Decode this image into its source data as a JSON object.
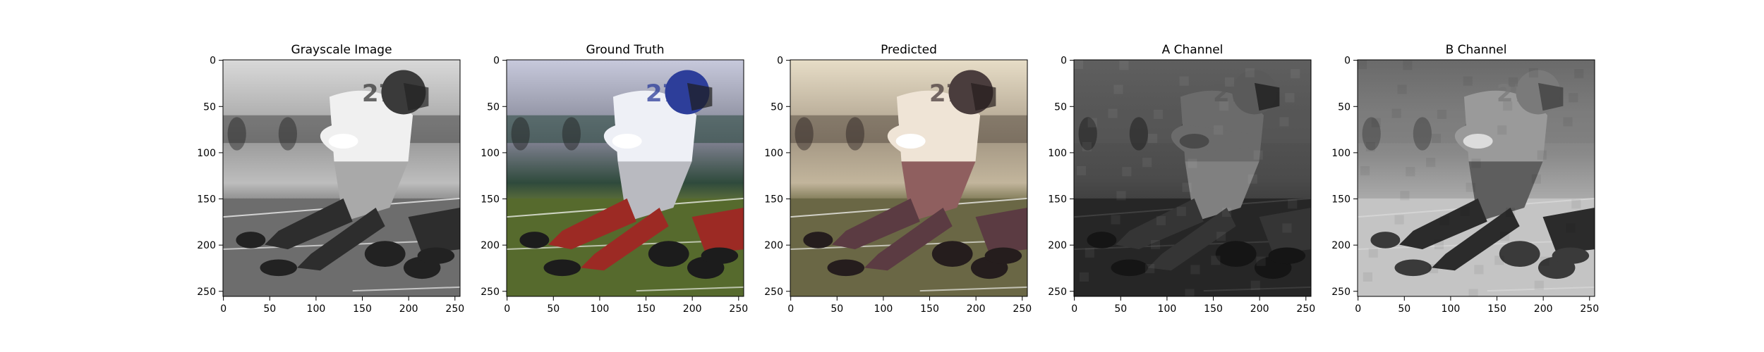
{
  "chart_data": [
    {
      "type": "image",
      "title": "Grayscale Image",
      "mode": "grayscale",
      "xlim": [
        0,
        255
      ],
      "ylim": [
        255,
        0
      ],
      "xticks": [
        0,
        50,
        100,
        150,
        200,
        250
      ],
      "yticks": [
        0,
        50,
        100,
        150,
        200,
        250
      ],
      "grid": false
    },
    {
      "type": "image",
      "title": "Ground Truth",
      "mode": "color",
      "xlim": [
        0,
        255
      ],
      "ylim": [
        255,
        0
      ],
      "xticks": [
        0,
        50,
        100,
        150,
        200,
        250
      ],
      "yticks": [
        0,
        50,
        100,
        150,
        200,
        250
      ],
      "grid": false
    },
    {
      "type": "image",
      "title": "Predicted",
      "mode": "color-muted",
      "xlim": [
        0,
        255
      ],
      "ylim": [
        255,
        0
      ],
      "xticks": [
        0,
        50,
        100,
        150,
        200,
        250
      ],
      "yticks": [
        0,
        50,
        100,
        150,
        200,
        250
      ],
      "grid": false
    },
    {
      "type": "image",
      "title": "A Channel",
      "mode": "channel-dark",
      "xlim": [
        0,
        255
      ],
      "ylim": [
        255,
        0
      ],
      "xticks": [
        0,
        50,
        100,
        150,
        200,
        250
      ],
      "yticks": [
        0,
        50,
        100,
        150,
        200,
        250
      ],
      "grid": false
    },
    {
      "type": "image",
      "title": "B Channel",
      "mode": "channel-light",
      "xlim": [
        0,
        255
      ],
      "ylim": [
        255,
        0
      ],
      "xticks": [
        0,
        50,
        100,
        150,
        200,
        250
      ],
      "yticks": [
        0,
        50,
        100,
        150,
        200,
        250
      ],
      "grid": false
    }
  ]
}
